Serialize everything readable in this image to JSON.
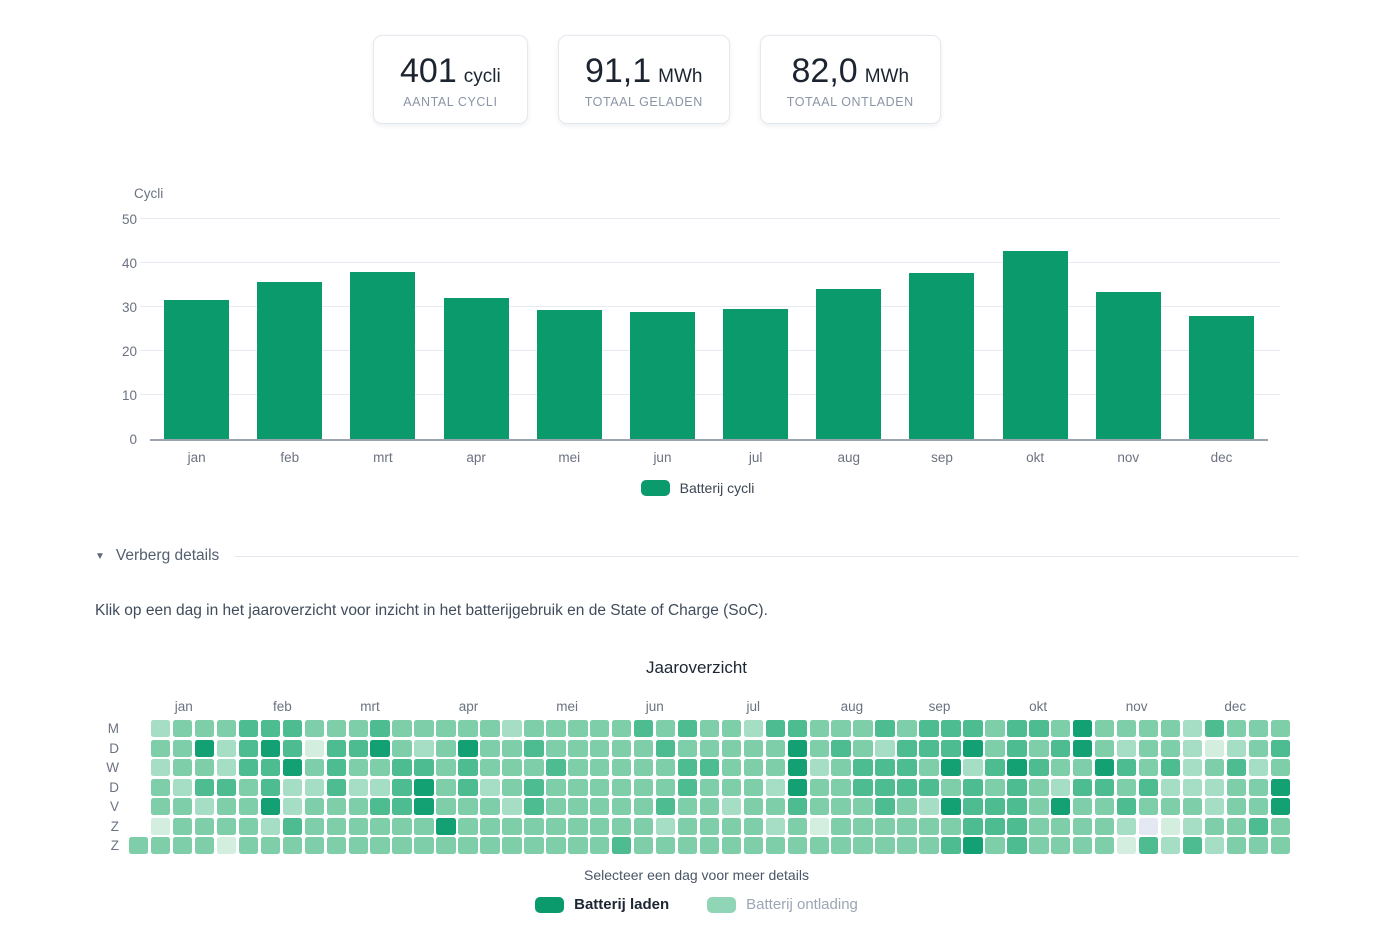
{
  "colors": {
    "bar": "#0a9a6b",
    "legend_laden": "#0a9a6b",
    "legend_ontlading": "#90d5b5",
    "axis_line": "#9aa3ae",
    "gridline": "#e8ecf2"
  },
  "stats": [
    {
      "value": "401",
      "unit": "cycli",
      "label": "AANTAL CYCLI"
    },
    {
      "value": "91,1",
      "unit": "MWh",
      "label": "TOTAAL GELADEN"
    },
    {
      "value": "82,0",
      "unit": "MWh",
      "label": "TOTAAL ONTLADEN"
    }
  ],
  "chart_data": [
    {
      "type": "bar",
      "title": "Cycli",
      "ylabel": "Cycli",
      "xlabel": "",
      "categories": [
        "jan",
        "feb",
        "mrt",
        "apr",
        "mei",
        "jun",
        "jul",
        "aug",
        "sep",
        "okt",
        "nov",
        "dec"
      ],
      "values": [
        31.7,
        35.6,
        37.9,
        32.0,
        29.4,
        28.9,
        29.5,
        34.1,
        37.7,
        42.8,
        33.3,
        28.0
      ],
      "ylim": [
        0,
        50
      ],
      "yticks": [
        0,
        10,
        20,
        30,
        40,
        50
      ],
      "grid": "horizontal",
      "legend_position": "bottom",
      "series_name": "Batterij cycli"
    },
    {
      "type": "heatmap",
      "title": "Jaaroverzicht",
      "x_labels": [
        "jan",
        "feb",
        "mrt",
        "apr",
        "mei",
        "jun",
        "jul",
        "aug",
        "sep",
        "okt",
        "nov",
        "dec"
      ],
      "month_start_cols": [
        0,
        5,
        9,
        13,
        18,
        22,
        26,
        31,
        35,
        39,
        44,
        48
      ],
      "y_labels": [
        "M",
        "D",
        "W",
        "D",
        "V",
        "Z",
        "Z"
      ],
      "cols": 53,
      "level_colors": {
        "0": "#e4e8f3",
        "1": "#d3eddf",
        "2": "#a5dec4",
        "3": "#7fceaa",
        "4": "#4dbc90",
        "5": "#13a173"
      },
      "rows": [
        {
          "first": null,
          "weeks": [
            "2333",
            "4443",
            "3343",
            "3333",
            "23333",
            "3434",
            "33244",
            "3334",
            "3444",
            "34435",
            "3333",
            "24333"
          ]
        },
        {
          "first": null,
          "weeks": [
            "3352",
            "4541",
            "4453",
            "2353",
            "34333",
            "3343",
            "33335",
            "3432",
            "4445",
            "34345",
            "3233",
            "21234"
          ]
        },
        {
          "first": null,
          "weeks": [
            "2332",
            "4453",
            "4334",
            "4343",
            "33433",
            "3334",
            "43335",
            "2344",
            "4352",
            "45433",
            "5434",
            "23423"
          ]
        },
        {
          "first": null,
          "weeks": [
            "3244",
            "3422",
            "4224",
            "5342",
            "34333",
            "3334",
            "33325",
            "3344",
            "4434",
            "34324",
            "4342",
            "22335"
          ]
        },
        {
          "first": null,
          "weeks": [
            "3323",
            "3523",
            "3344",
            "5333",
            "24333",
            "3343",
            "32334",
            "3334",
            "3254",
            "44353",
            "3433",
            "32335"
          ]
        },
        {
          "first": null,
          "weeks": [
            "1333",
            "3243",
            "3333",
            "3533",
            "33333",
            "3323",
            "33323",
            "1333",
            "3334",
            "44333",
            "3201",
            "23343"
          ]
        },
        {
          "first": "3",
          "weeks": [
            "3331",
            "3333",
            "3333",
            "3333",
            "33333",
            "4333",
            "33333",
            "3333",
            "3345",
            "34333",
            "3142",
            "42333"
          ]
        }
      ]
    }
  ],
  "details_toggle": {
    "icon": "caret-down",
    "icon_glyph": "▼",
    "label": "Verberg details"
  },
  "description": "Klik op een dag in het jaaroverzicht voor inzicht in het batterijgebruik en de State of Charge (SoC).",
  "heatmap_section": {
    "footer": "Selecteer een dag voor meer details",
    "legend": [
      {
        "label": "Batterij laden",
        "active": true
      },
      {
        "label": "Batterij ontlading",
        "active": false
      }
    ]
  }
}
